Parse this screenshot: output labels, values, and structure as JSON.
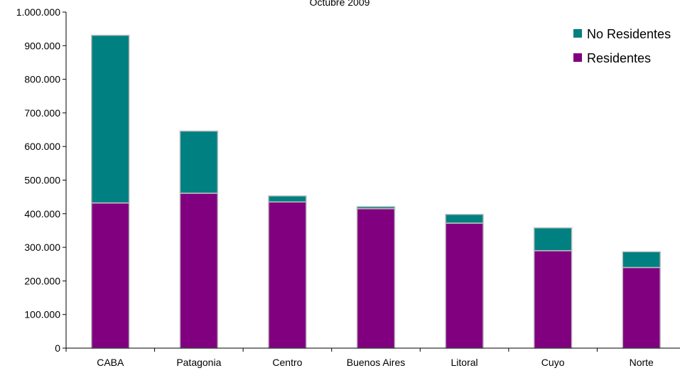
{
  "chart_data": {
    "type": "bar",
    "stacked": true,
    "title": "Octubre 2009",
    "categories": [
      "CABA",
      "Patagonia",
      "Centro",
      "Buenos Aires",
      "Litoral",
      "Cuyo",
      "Norte"
    ],
    "series": [
      {
        "name": "Residentes",
        "color": "#800080",
        "values": [
          432000,
          461000,
          435000,
          415000,
          372000,
          290000,
          240000
        ]
      },
      {
        "name": "No Residentes",
        "color": "#008080",
        "values": [
          499000,
          185000,
          18000,
          6000,
          26000,
          68000,
          47000
        ]
      }
    ],
    "ylim": [
      0,
      1000000
    ],
    "yticks": [
      0,
      100000,
      200000,
      300000,
      400000,
      500000,
      600000,
      700000,
      800000,
      900000,
      1000000
    ],
    "ytick_labels": [
      "0",
      "100.000",
      "200.000",
      "300.000",
      "400.000",
      "500.000",
      "600.000",
      "700.000",
      "800.000",
      "900.000",
      "1.000.000"
    ],
    "legend_order": [
      "No Residentes",
      "Residentes"
    ],
    "legend_position": "top-right",
    "grid": false,
    "bar_edge_color": "#c0c0c0"
  }
}
